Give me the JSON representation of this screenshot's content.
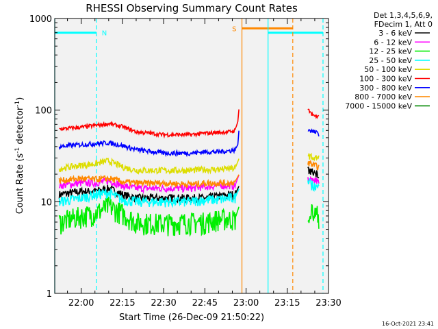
{
  "chart_data": {
    "type": "line",
    "title": "RHESSI Observing Summary Count Rates",
    "xlabel": "Start Time (26-Dec-09 21:50:22)",
    "ylabel_parts": [
      "Count Rate (s",
      "-1",
      " detector",
      "-1",
      ")"
    ],
    "x_start": "21:50:22",
    "x_end": "23:30",
    "xlim_minutes": [
      -9.63,
      90.0
    ],
    "x_ticks_minutes": [
      0,
      15,
      30,
      45,
      60,
      75,
      90
    ],
    "x_tick_labels": [
      "22:00",
      "22:15",
      "22:30",
      "22:45",
      "23:00",
      "23:15",
      "23:30"
    ],
    "ylim": [
      1,
      1000
    ],
    "yscale": "log",
    "y_ticks": [
      1,
      10,
      100,
      1000
    ],
    "y_tick_labels": [
      "1",
      "10",
      "100",
      "1000"
    ],
    "legend_header": [
      "Det 1,3,4,5,6,9,",
      "FDecim 1, Att 0"
    ],
    "legend_position": "outside-right",
    "grid": false,
    "series": [
      {
        "name": "3 - 6 keV",
        "color": "#000000",
        "x": [
          -8,
          0,
          5,
          10,
          15,
          20,
          30,
          40,
          45,
          50,
          54,
          56,
          57.5
        ],
        "y": [
          12,
          13,
          13,
          14,
          12,
          11,
          11,
          11,
          11,
          11.5,
          12,
          12,
          15
        ]
      },
      {
        "name": "6 - 12 keV",
        "color": "#ff00ff",
        "x": [
          -8,
          0,
          5,
          10,
          15,
          20,
          30,
          40,
          45,
          50,
          54,
          56,
          57.5
        ],
        "y": [
          15,
          16,
          16,
          17,
          15,
          14,
          14,
          14,
          14.5,
          15,
          15,
          15,
          20
        ]
      },
      {
        "name": "12 - 25 keV",
        "color": "#00ee00",
        "x": [
          -8,
          0,
          5,
          10,
          15,
          20,
          30,
          40,
          45,
          50,
          54,
          56,
          57.5
        ],
        "y": [
          6,
          7,
          7.5,
          9,
          7.5,
          6,
          5.8,
          6,
          6,
          6.5,
          6.5,
          6.5,
          9
        ]
      },
      {
        "name": "25 - 50 keV",
        "color": "#00ffff",
        "x": [
          -8,
          0,
          5,
          10,
          15,
          20,
          30,
          40,
          45,
          50,
          54,
          56,
          57.5
        ],
        "y": [
          10,
          11,
          12,
          12.5,
          10.5,
          10,
          10,
          10,
          10.5,
          10.5,
          11,
          11,
          14
        ]
      },
      {
        "name": "50 - 100 keV",
        "color": "#dddd00",
        "x": [
          -8,
          0,
          5,
          10,
          15,
          20,
          30,
          40,
          45,
          50,
          54,
          56,
          57.5
        ],
        "y": [
          23,
          25,
          26,
          28,
          24,
          22,
          22,
          22,
          22.5,
          22.5,
          23,
          23,
          30
        ]
      },
      {
        "name": "100 - 300 keV",
        "color": "#ff0000",
        "x": [
          -8,
          0,
          5,
          10,
          15,
          20,
          30,
          40,
          45,
          50,
          54,
          56,
          57,
          57.5
        ],
        "y": [
          62,
          65,
          68,
          71,
          66,
          58,
          54,
          54,
          56,
          57,
          58,
          60,
          75,
          110
        ]
      },
      {
        "name": "300 - 800 keV",
        "color": "#0000ff",
        "x": [
          -8,
          0,
          5,
          10,
          15,
          20,
          30,
          40,
          45,
          50,
          54,
          56,
          57,
          57.5
        ],
        "y": [
          40,
          42,
          43,
          44,
          41,
          37,
          34,
          34,
          35,
          35,
          36,
          37,
          42,
          65
        ]
      },
      {
        "name": "800 - 7000 keV",
        "color": "#ff8800",
        "x": [
          -8,
          0,
          5,
          10,
          15,
          20,
          30,
          40,
          45,
          50,
          54,
          56,
          57.5
        ],
        "y": [
          17,
          18,
          17.5,
          18,
          16.5,
          16,
          16,
          15.5,
          16,
          16,
          16,
          16.5,
          20
        ]
      },
      {
        "name": "7000 - 15000 keV",
        "color": "#008800",
        "x": [],
        "y": []
      }
    ],
    "after_gap_series": {
      "x_start_minutes": 82.5,
      "x_end_minutes": 86.5,
      "values": {
        "100 - 300 keV": [
          100,
          87,
          85
        ],
        "300 - 800 keV": [
          62,
          58,
          55
        ],
        "50 - 100 keV": [
          32,
          30,
          30
        ],
        "800 - 7000 keV": [
          27,
          25,
          24
        ],
        "3 - 6 keV": [
          22,
          21,
          20
        ],
        "6 - 12 keV": [
          18,
          17,
          17
        ],
        "25 - 50 keV": [
          16,
          15,
          14
        ],
        "12 - 25 keV": [
          8,
          7.5,
          7
        ]
      }
    },
    "annotations": [
      {
        "kind": "bar",
        "label": "N",
        "color": "#00ffff",
        "x_from": -9.63,
        "x_to": 5.5,
        "y": 700
      },
      {
        "kind": "bar",
        "label": "S",
        "color": "#ff8800",
        "x_from": 58.5,
        "x_to": 77.0,
        "y": 780
      },
      {
        "kind": "bar",
        "label": "",
        "color": "#00ffff",
        "x_from": 68.0,
        "x_to": 88.0,
        "y": 700
      },
      {
        "kind": "vline",
        "style": "solid",
        "color": "#00ffff",
        "x": -9.63
      },
      {
        "kind": "vline",
        "style": "dashed",
        "color": "#00ffff",
        "x": 5.5
      },
      {
        "kind": "vline",
        "style": "solid",
        "color": "#ff8800",
        "x": 58.5
      },
      {
        "kind": "vline",
        "style": "solid",
        "color": "#00ffff",
        "x": 68.0
      },
      {
        "kind": "vline",
        "style": "dashed",
        "color": "#ff8800",
        "x": 77.0
      },
      {
        "kind": "vline",
        "style": "dashed",
        "color": "#00ffff",
        "x": 88.0
      }
    ]
  },
  "footer": {
    "timestamp": "16-Oct-2021 23:41"
  }
}
